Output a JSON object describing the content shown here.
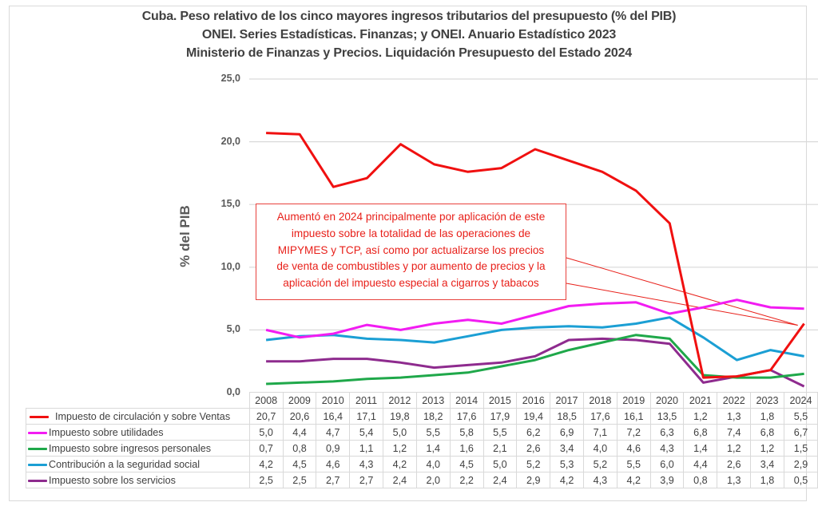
{
  "chart_data": {
    "type": "line",
    "title": [
      "Cuba. Peso relativo de los cinco mayores ingresos tributarios del presupuesto (% del PIB)",
      "ONEI. Series Estadísticas. Finanzas; y ONEI. Anuario Estadístico 2023",
      "Ministerio de Finanzas y Precios. Liquidación Presupuesto del Estado 2024"
    ],
    "ylabel": "% del PIB",
    "xlabel": "",
    "ylim": [
      0,
      25
    ],
    "yticks": [
      "0,0",
      "5,0",
      "10,0",
      "15,0",
      "20,0",
      "25,0"
    ],
    "ytick_values": [
      0,
      5,
      10,
      15,
      20,
      25
    ],
    "grid": true,
    "legend_placement": "data-table-below",
    "categories": [
      "2008",
      "2009",
      "2010",
      "2011",
      "2012",
      "2013",
      "2014",
      "2015",
      "2016",
      "2017",
      "2018",
      "2019",
      "2020",
      "2021",
      "2022",
      "2023",
      "2024"
    ],
    "series": [
      {
        "name": "Impuesto de circulación y sobre Ventas",
        "color": "#f01010",
        "values": [
          20.7,
          20.6,
          16.4,
          17.1,
          19.8,
          18.2,
          17.6,
          17.9,
          19.4,
          18.5,
          17.6,
          16.1,
          13.5,
          1.2,
          1.3,
          1.8,
          5.5
        ],
        "labels": [
          "20,7",
          "20,6",
          "16,4",
          "17,1",
          "19,8",
          "18,2",
          "17,6",
          "17,9",
          "19,4",
          "18,5",
          "17,6",
          "16,1",
          "13,5",
          "1,2",
          "1,3",
          "1,8",
          "5,5"
        ]
      },
      {
        "name": "Impuesto sobre utilidades",
        "color": "#f21cf2",
        "values": [
          5.0,
          4.4,
          4.7,
          5.4,
          5.0,
          5.5,
          5.8,
          5.5,
          6.2,
          6.9,
          7.1,
          7.2,
          6.3,
          6.8,
          7.4,
          6.8,
          6.7
        ],
        "labels": [
          "5,0",
          "4,4",
          "4,7",
          "5,4",
          "5,0",
          "5,5",
          "5,8",
          "5,5",
          "6,2",
          "6,9",
          "7,1",
          "7,2",
          "6,3",
          "6,8",
          "7,4",
          "6,8",
          "6,7"
        ]
      },
      {
        "name": "Impuesto sobre ingresos personales",
        "color": "#1fa84a",
        "values": [
          0.7,
          0.8,
          0.9,
          1.1,
          1.2,
          1.4,
          1.6,
          2.1,
          2.6,
          3.4,
          4.0,
          4.6,
          4.3,
          1.4,
          1.2,
          1.2,
          1.5
        ],
        "labels": [
          "0,7",
          "0,8",
          "0,9",
          "1,1",
          "1,2",
          "1,4",
          "1,6",
          "2,1",
          "2,6",
          "3,4",
          "4,0",
          "4,6",
          "4,3",
          "1,4",
          "1,2",
          "1,2",
          "1,5"
        ]
      },
      {
        "name": "Contribución a la seguridad social",
        "color": "#1b9fd4",
        "values": [
          4.2,
          4.5,
          4.6,
          4.3,
          4.2,
          4.0,
          4.5,
          5.0,
          5.2,
          5.3,
          5.2,
          5.5,
          6.0,
          4.4,
          2.6,
          3.4,
          2.9
        ],
        "labels": [
          "4,2",
          "4,5",
          "4,6",
          "4,3",
          "4,2",
          "4,0",
          "4,5",
          "5,0",
          "5,2",
          "5,3",
          "5,2",
          "5,5",
          "6,0",
          "4,4",
          "2,6",
          "3,4",
          "2,9"
        ]
      },
      {
        "name": "Impuesto sobre los servicios",
        "color": "#8e2b8e",
        "values": [
          2.5,
          2.5,
          2.7,
          2.7,
          2.4,
          2.0,
          2.2,
          2.4,
          2.9,
          4.2,
          4.3,
          4.2,
          3.9,
          0.8,
          1.3,
          1.8,
          0.5
        ],
        "labels": [
          "2,5",
          "2,5",
          "2,7",
          "2,7",
          "2,4",
          "2,0",
          "2,2",
          "2,4",
          "2,9",
          "4,2",
          "4,3",
          "4,2",
          "3,9",
          "0,8",
          "1,3",
          "1,8",
          "0,5"
        ]
      }
    ],
    "annotation": {
      "lines": [
        "Aumentó en 2024 principalmente por aplicación de este",
        "impuesto sobre la totalidad de las operaciones de",
        "MIPYMES y TCP, así como por actualizarse los precios",
        "de venta de combustibles y por aumento de precios y la",
        "aplicación del impuesto especial a cigarros y tabacos"
      ],
      "points_to": {
        "series": "Impuesto de circulación y sobre Ventas",
        "category": "2024",
        "value": 5.5
      },
      "color": "#e8201a"
    }
  }
}
